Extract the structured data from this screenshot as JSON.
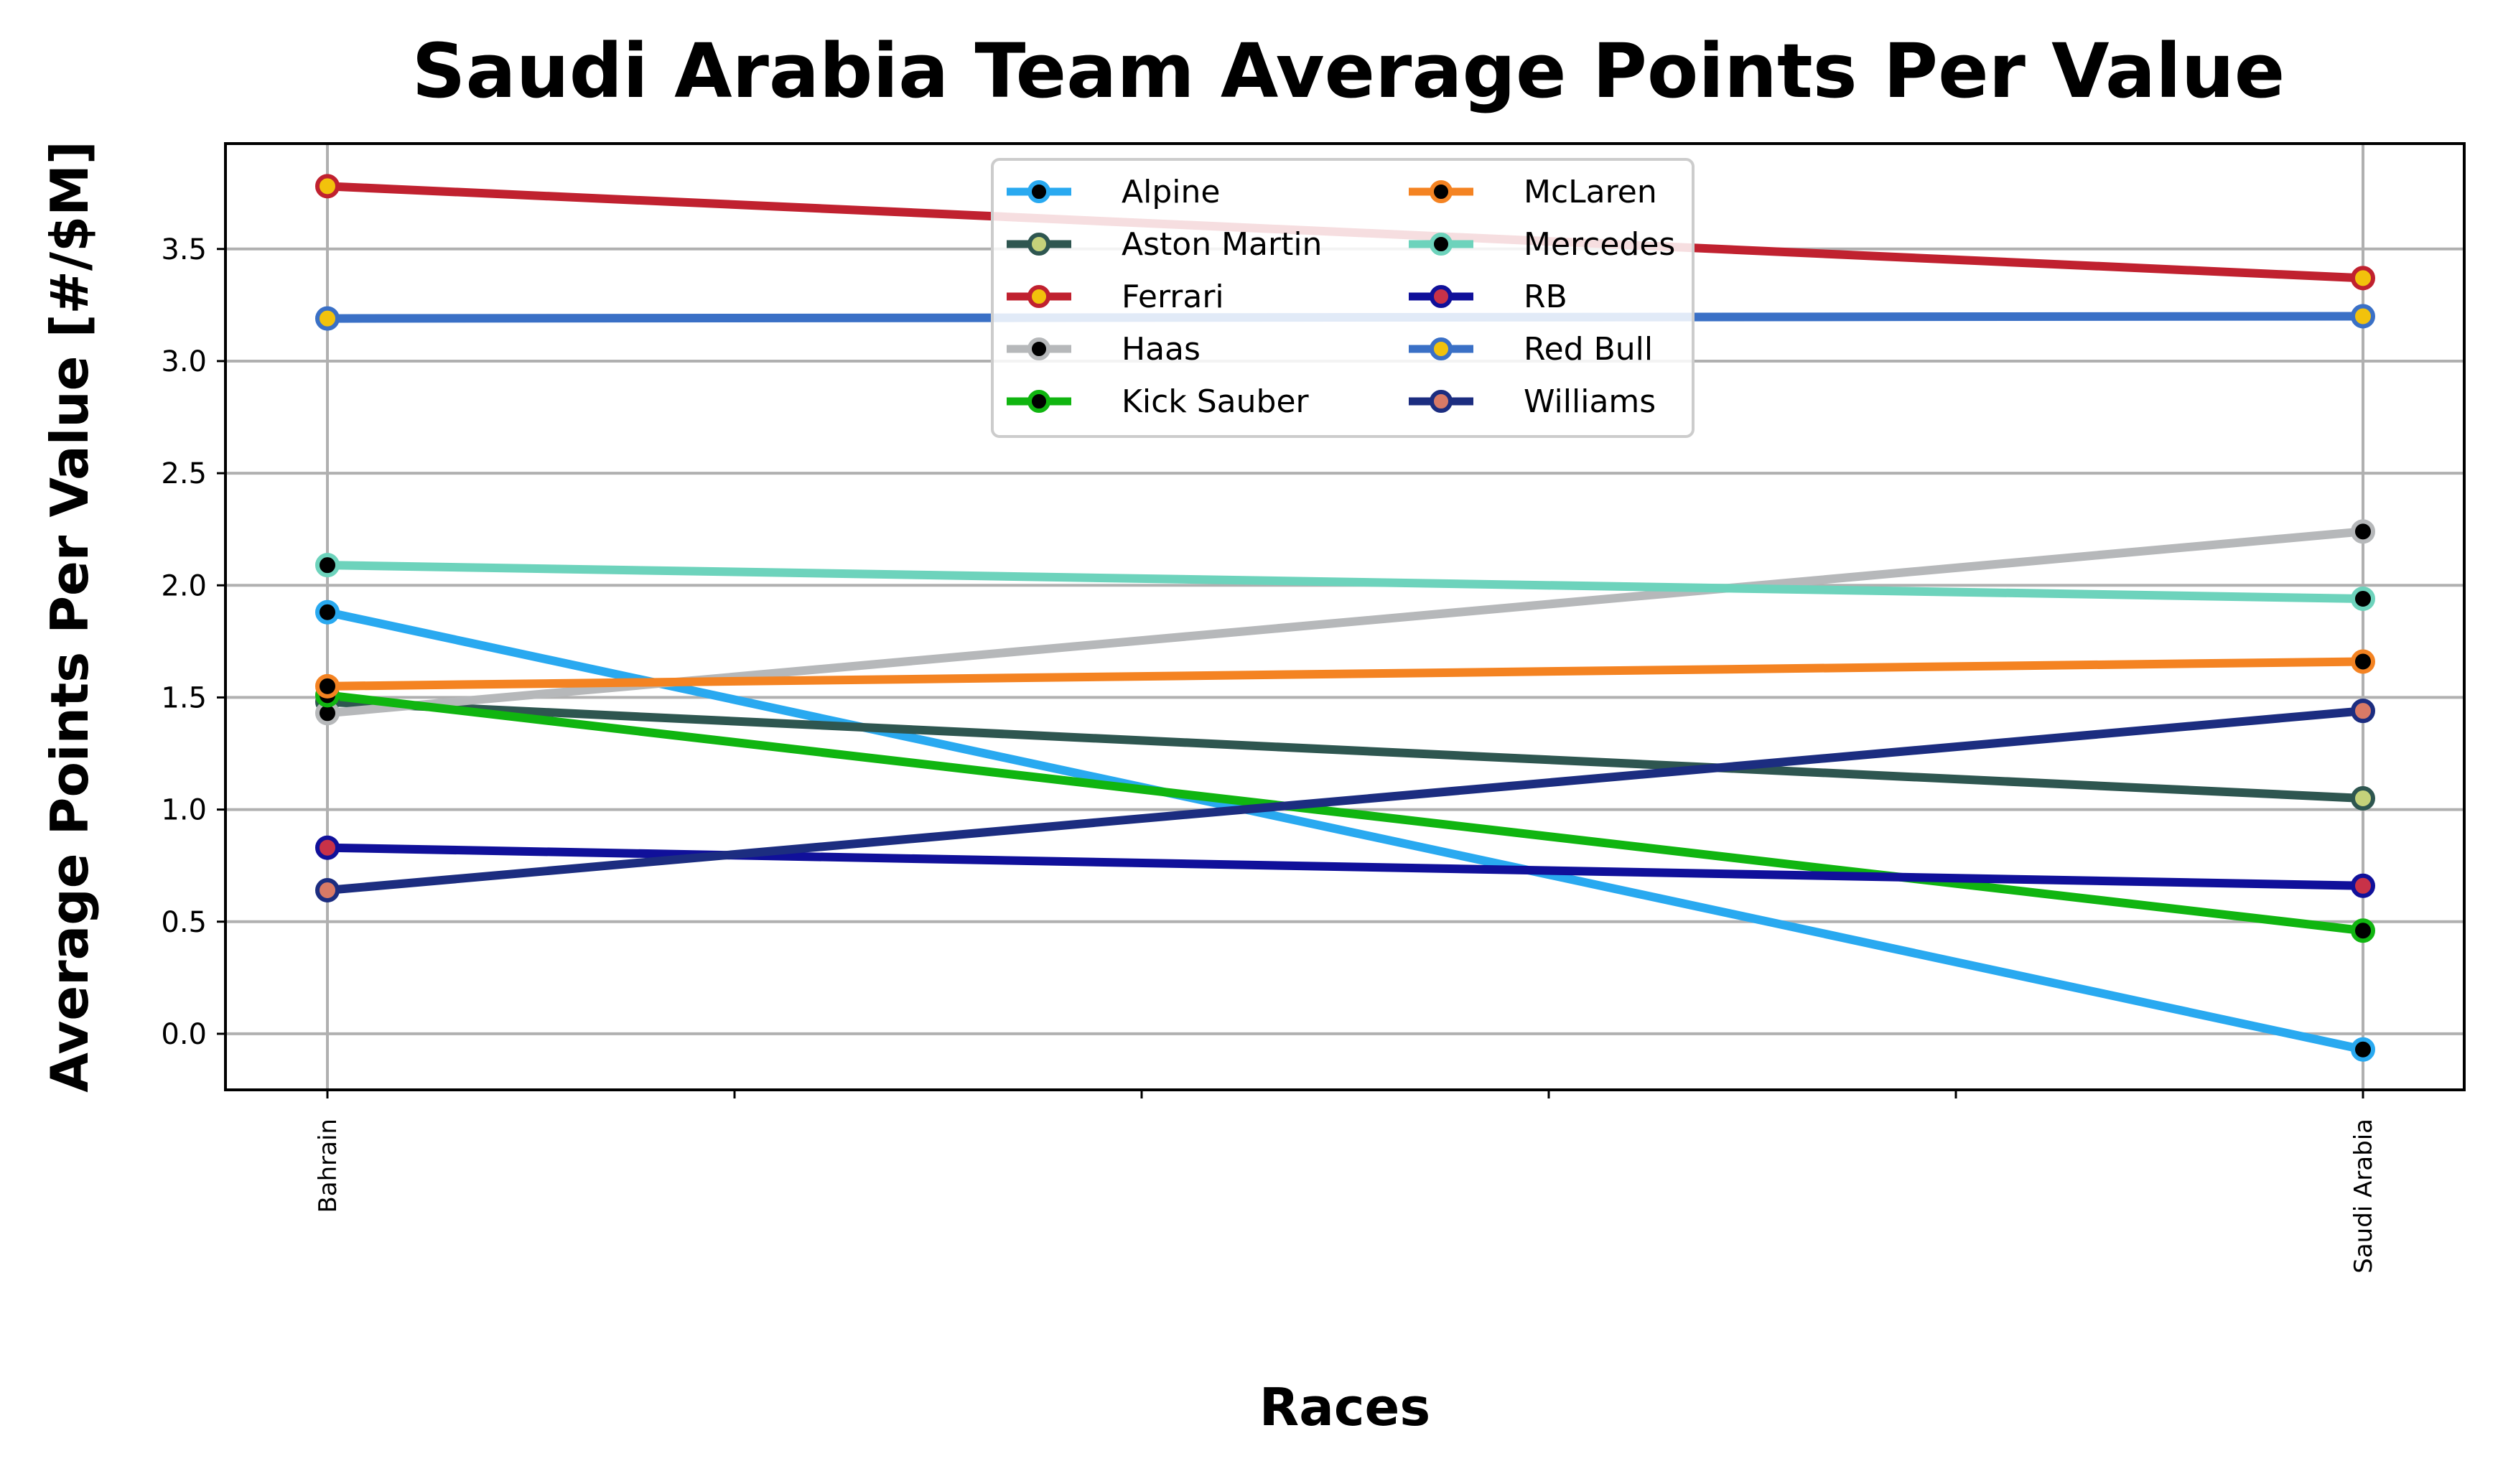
{
  "chart_data": {
    "type": "line",
    "title": "Saudi Arabia Team Average Points Per Value",
    "xlabel": "Races",
    "ylabel": "Average Points Per Value [#/$M]",
    "categories": [
      "Bahrain",
      "Saudi Arabia"
    ],
    "ylim": [
      -0.25,
      3.97
    ],
    "yticks": [
      0.0,
      0.5,
      1.0,
      1.5,
      2.0,
      2.5,
      3.0,
      3.5
    ],
    "ytick_labels": [
      "0.0",
      "0.5",
      "1.0",
      "1.5",
      "2.0",
      "2.5",
      "3.0",
      "3.5"
    ],
    "grid": true,
    "legend_position": "top-center",
    "legend_columns": 2,
    "series": [
      {
        "name": "Alpine",
        "values": [
          1.88,
          -0.07
        ],
        "color": "#29a9f0",
        "marker_face": "#000000",
        "marker_edge": "#29a9f0"
      },
      {
        "name": "Aston Martin",
        "values": [
          1.48,
          1.05
        ],
        "color": "#2e5650",
        "marker_face": "#c5d27a",
        "marker_edge": "#2e5650"
      },
      {
        "name": "Ferrari",
        "values": [
          3.78,
          3.37
        ],
        "color": "#c0212f",
        "marker_face": "#f2c20c",
        "marker_edge": "#c0212f"
      },
      {
        "name": "Haas",
        "values": [
          1.43,
          2.24
        ],
        "color": "#b6b8ba",
        "marker_face": "#000000",
        "marker_edge": "#b6b8ba"
      },
      {
        "name": "Kick Sauber",
        "values": [
          1.51,
          0.46
        ],
        "color": "#10b510",
        "marker_face": "#000000",
        "marker_edge": "#10b510"
      },
      {
        "name": "McLaren",
        "values": [
          1.55,
          1.66
        ],
        "color": "#f48322",
        "marker_face": "#000000",
        "marker_edge": "#f48322"
      },
      {
        "name": "Mercedes",
        "values": [
          2.09,
          1.94
        ],
        "color": "#6dd3bc",
        "marker_face": "#000000",
        "marker_edge": "#6dd3bc"
      },
      {
        "name": "RB",
        "values": [
          0.83,
          0.66
        ],
        "color": "#10109a",
        "marker_face": "#c83248",
        "marker_edge": "#10109a"
      },
      {
        "name": "Red Bull",
        "values": [
          3.19,
          3.2
        ],
        "color": "#3a70c6",
        "marker_face": "#f2c20c",
        "marker_edge": "#3a70c6"
      },
      {
        "name": "Williams",
        "values": [
          0.64,
          1.44
        ],
        "color": "#1c2d80",
        "marker_face": "#d97a66",
        "marker_edge": "#1c2d80"
      }
    ]
  }
}
